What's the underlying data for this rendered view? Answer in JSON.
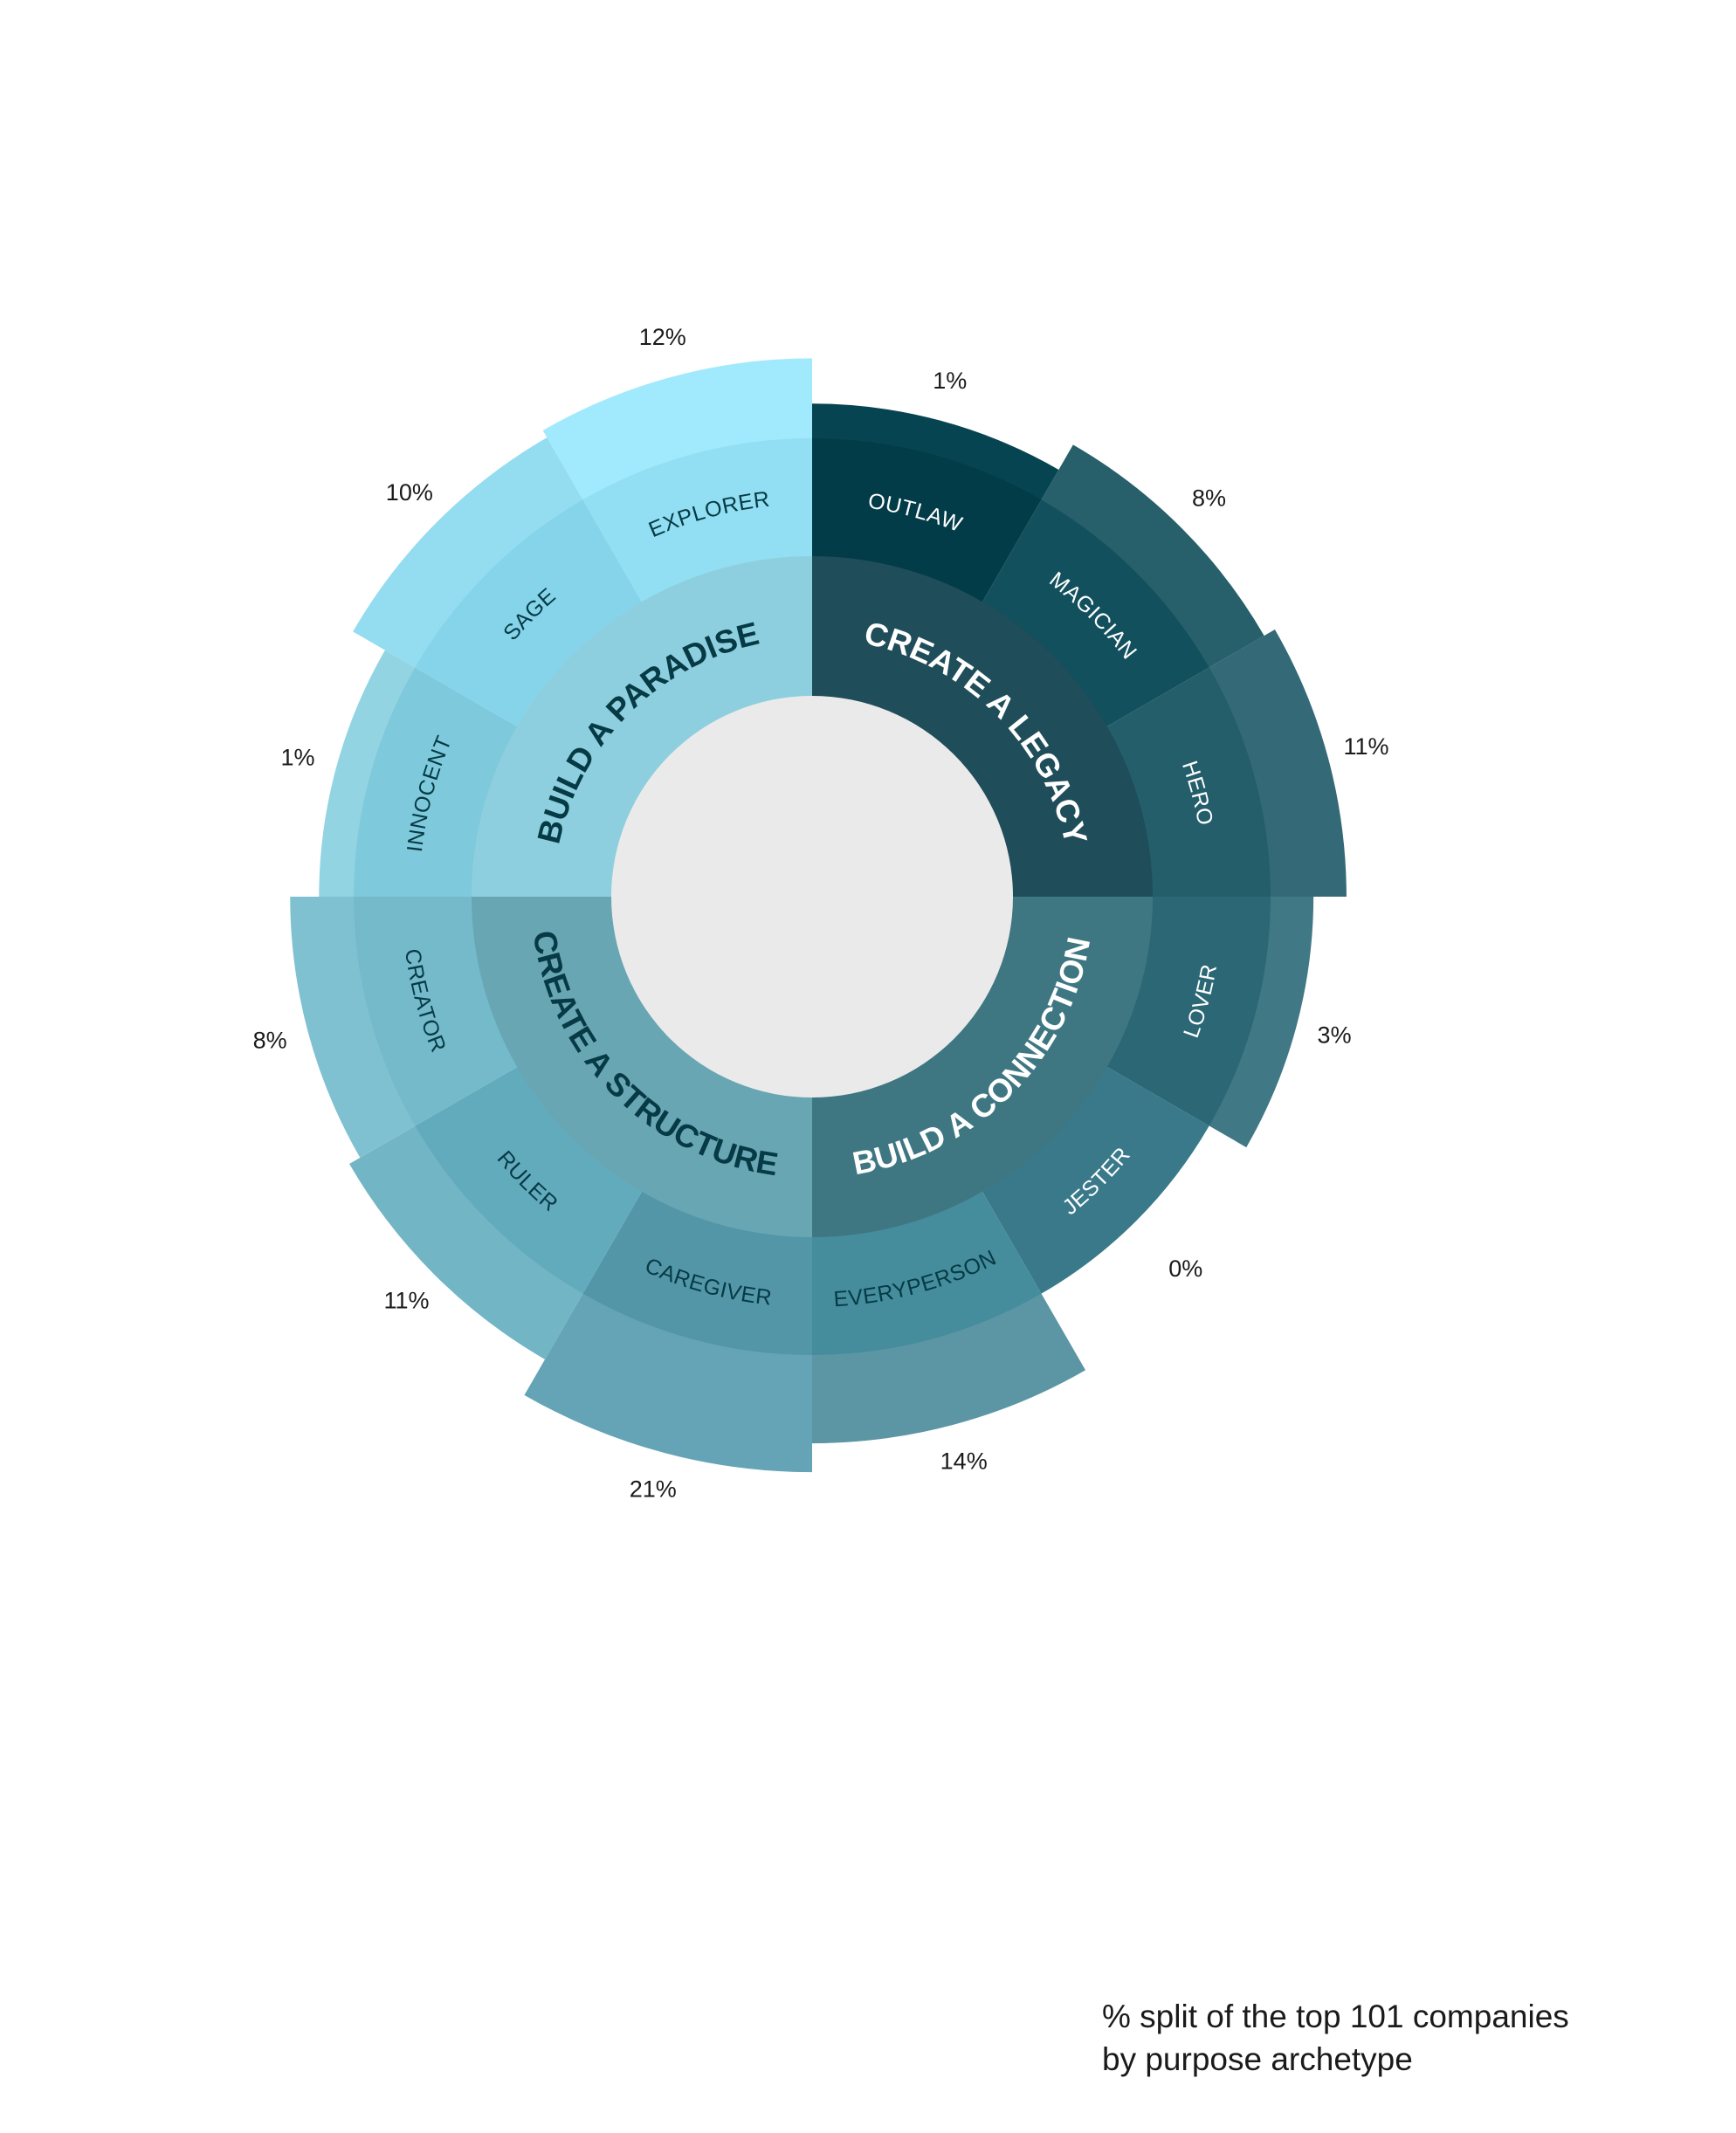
{
  "chart_data": {
    "type": "polar-area (nightingale rose) with hierarchical rings",
    "caption": [
      "% split of the top 101 companies",
      "by purpose archetype"
    ],
    "groups": [
      {
        "name": "CREATE A LEGACY",
        "fill": "#1f4d59",
        "text_color": "#ffffff",
        "archetypes": [
          {
            "label": "OUTLAW",
            "value": 1,
            "value_label": "1%",
            "outer_color": "#074452",
            "band_color": "#023c48",
            "text_color": "#ffffff"
          },
          {
            "label": "MAGICIAN",
            "value": 8,
            "value_label": "8%",
            "outer_color": "#275f6b",
            "band_color": "#13505d",
            "text_color": "#ffffff"
          },
          {
            "label": "HERO",
            "value": 11,
            "value_label": "11%",
            "outer_color": "#346a77",
            "band_color": "#245e6b",
            "text_color": "#ffffff"
          }
        ]
      },
      {
        "name": "BUILD A CONNECTION",
        "fill": "#3e7782",
        "text_color": "#ffffff",
        "archetypes": [
          {
            "label": "LOVER",
            "value": 3,
            "value_label": "3%",
            "outer_color": "#417885",
            "band_color": "#2c6775",
            "text_color": "#ffffff"
          },
          {
            "label": "JESTER",
            "value": 0,
            "value_label": "0%",
            "outer_color": "#ffffff",
            "band_color": "#39798a",
            "text_color": "#ffffff"
          },
          {
            "label": "EVERYPERSON",
            "value": 14,
            "value_label": "14%",
            "outer_color": "#5c96a5",
            "band_color": "#458d9d",
            "text_color": "#063a45"
          }
        ]
      },
      {
        "name": "CREATE A STRUCTURE",
        "fill": "#69a6b4",
        "text_color": "#063a45",
        "archetypes": [
          {
            "label": "CAREGIVER",
            "value": 21,
            "value_label": "21%",
            "outer_color": "#65a4b6",
            "band_color": "#5396a7",
            "text_color": "#063a45"
          },
          {
            "label": "RULER",
            "value": 11,
            "value_label": "11%",
            "outer_color": "#72b5c5",
            "band_color": "#62abbd",
            "text_color": "#063a45"
          },
          {
            "label": "CREATOR",
            "value": 8,
            "value_label": "8%",
            "outer_color": "#80c1d1",
            "band_color": "#74bacb",
            "text_color": "#063a45"
          }
        ]
      },
      {
        "name": "BUILD A PARADISE",
        "fill": "#8ecfdf",
        "text_color": "#063a45",
        "archetypes": [
          {
            "label": "INNOCENT",
            "value": 1,
            "value_label": "1%",
            "outer_color": "#93d4e3",
            "band_color": "#7fc9dc",
            "text_color": "#063a45"
          },
          {
            "label": "SAGE",
            "value": 10,
            "value_label": "10%",
            "outer_color": "#94dcef",
            "band_color": "#86d4ea",
            "text_color": "#063a45"
          },
          {
            "label": "EXPLORER",
            "value": 12,
            "value_label": "12%",
            "outer_color": "#a1e9fc",
            "band_color": "#92def2",
            "text_color": "#063a45"
          }
        ]
      }
    ],
    "center_color": "#ebeaeb"
  }
}
